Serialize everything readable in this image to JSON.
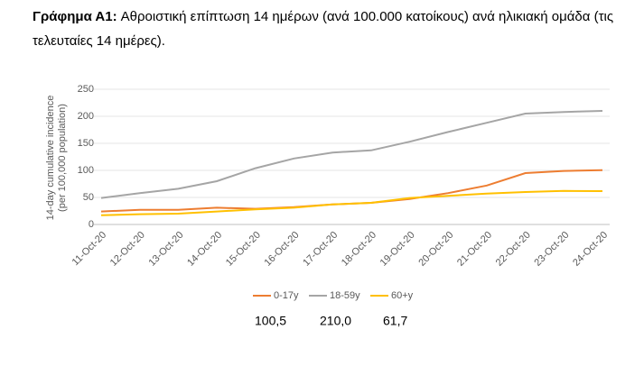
{
  "chart_data": {
    "type": "line",
    "title_bold": "Γράφημα Α1:",
    "title": "Αθροιστική επίπτωση 14 ημέρων (ανά 100.000 κατοίκους) ανά ηλικιακή ομάδα (τις τελευταίες 14 ημέρες).",
    "y_label": [
      "14-day cumulative incidence",
      "(per 100,000 population)"
    ],
    "categories": [
      "11-Oct-20",
      "12-Oct-20",
      "13-Oct-20",
      "14-Oct-20",
      "15-Oct-20",
      "16-Oct-20",
      "17-Oct-20",
      "18-Oct-20",
      "19-Oct-20",
      "20-Oct-20",
      "21-Oct-20",
      "22-Oct-20",
      "23-Oct-20",
      "24-Oct-20"
    ],
    "series": [
      {
        "name": "0-17y",
        "color": "#ed7d31",
        "values": [
          24,
          27,
          27,
          31,
          29,
          32,
          37,
          40,
          47,
          58,
          72,
          95,
          99,
          100.5
        ]
      },
      {
        "name": "18-59y",
        "color": "#a5a5a5",
        "values": [
          49,
          58,
          66,
          80,
          104,
          122,
          133,
          137,
          153,
          171,
          188,
          205,
          208,
          210
        ]
      },
      {
        "name": "60+y",
        "color": "#ffc000",
        "values": [
          17,
          19,
          20,
          24,
          28,
          31,
          37,
          40,
          49,
          53,
          57,
          60,
          62,
          61.7
        ]
      }
    ],
    "last_values": [
      "100,5",
      "210,0",
      "61,7"
    ],
    "ylim": [
      0,
      250
    ],
    "yticks": [
      0,
      50,
      100,
      150,
      200,
      250
    ],
    "grid": true
  }
}
